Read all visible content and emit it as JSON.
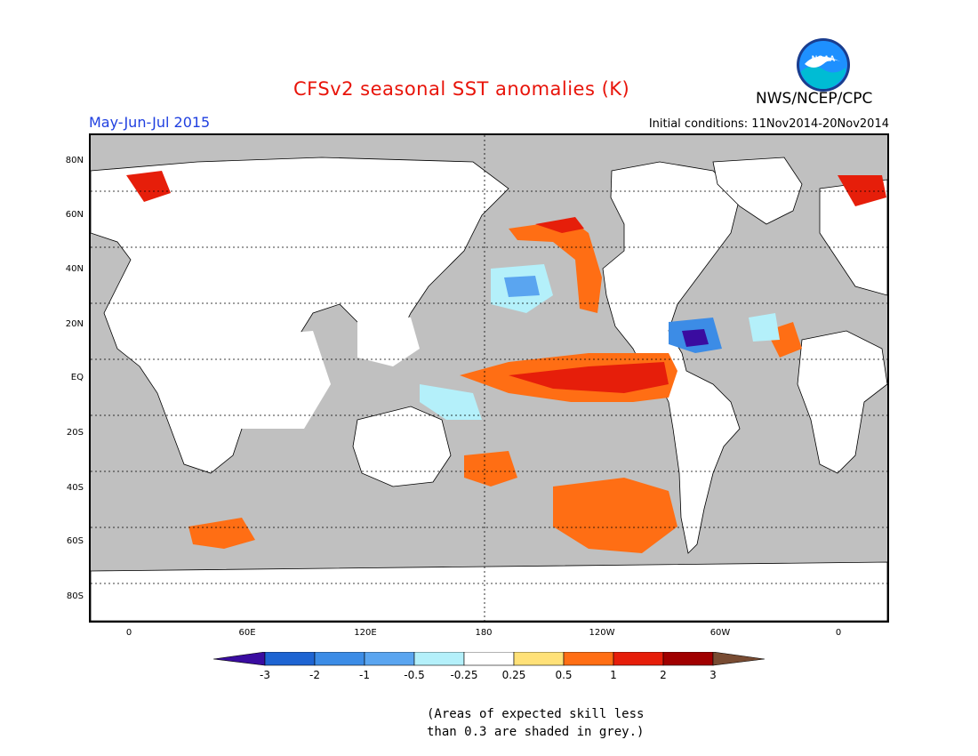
{
  "header": {
    "title": "CFSv2 seasonal SST anomalies (K)",
    "title_color": "#e8140a",
    "season": "May-Jun-Jul 2015",
    "season_color": "#2040e0",
    "initial_conditions": "Initial conditions: 11Nov2014-20Nov2014",
    "agency": "NWS/NCEP/CPC",
    "logo_text": "NOAA"
  },
  "map": {
    "lat_labels": [
      "80N",
      "60N",
      "40N",
      "20N",
      "EQ",
      "20S",
      "40S",
      "60S",
      "80S"
    ],
    "lon_labels": [
      "0",
      "60E",
      "120E",
      "180",
      "120W",
      "60W",
      "0"
    ],
    "mask_color": "#c0c0c0",
    "land_color": "#ffffff"
  },
  "colorbar": {
    "labels": [
      "-3",
      "-2",
      "-1",
      "-0.5",
      "-0.25",
      "0.25",
      "0.5",
      "1",
      "2",
      "3"
    ],
    "colors": [
      "#3a0ca0",
      "#1e64d2",
      "#3c8ce6",
      "#5aa5f0",
      "#b4f0fa",
      "#ffffff",
      "#ffe178",
      "#ff6e14",
      "#e61e0a",
      "#a00000",
      "#784b32"
    ]
  },
  "footnote": {
    "line1": "(Areas of expected skill less",
    "line2": "than 0.3 are shaded in grey.)"
  }
}
